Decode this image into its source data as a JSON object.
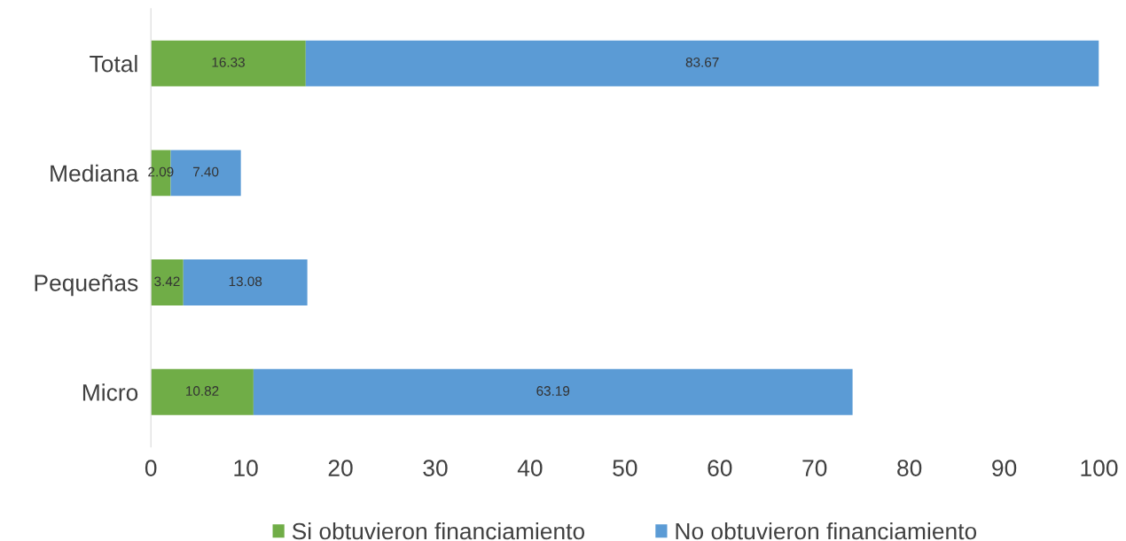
{
  "chart_data": {
    "type": "bar",
    "orientation": "horizontal",
    "stacked": true,
    "categories": [
      "Total",
      "Mediana",
      "Pequeñas",
      "Micro"
    ],
    "series": [
      {
        "name": "Si obtuvieron financiamiento",
        "color": "#70ad47",
        "values": [
          16.33,
          2.09,
          3.42,
          10.82
        ],
        "value_labels": [
          "16.33",
          "2.09",
          "3.42",
          "10.82"
        ]
      },
      {
        "name": "No obtuvieron financiamiento",
        "color": "#5b9bd5",
        "values": [
          83.67,
          7.4,
          13.08,
          63.19
        ],
        "value_labels": [
          "83.67",
          "7.40",
          "13.08",
          "63.19"
        ]
      }
    ],
    "xlim": [
      0,
      100
    ],
    "xticks": [
      0,
      10,
      20,
      30,
      40,
      50,
      60,
      70,
      80,
      90,
      100
    ],
    "grid": false,
    "legend": "bottom"
  }
}
